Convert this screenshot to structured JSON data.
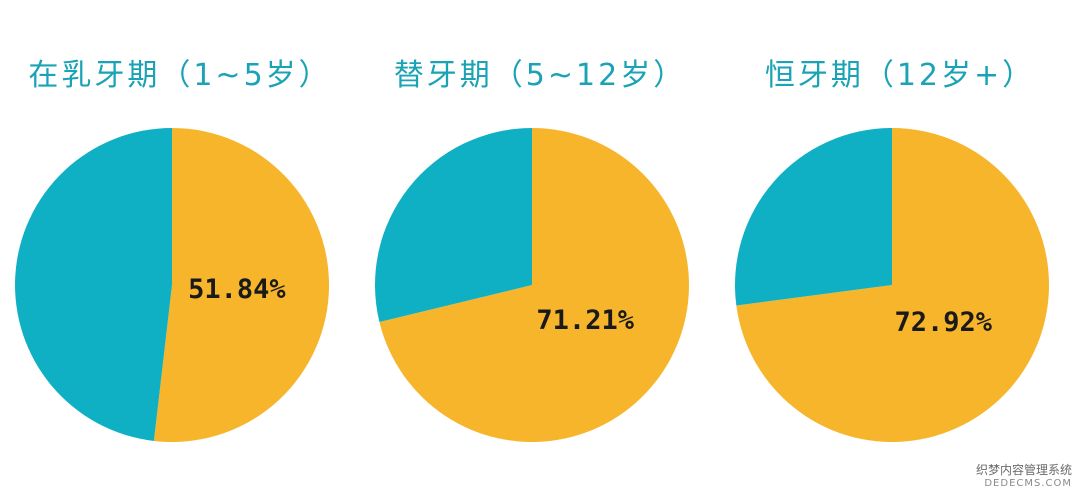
{
  "chart_data": [
    {
      "type": "pie",
      "title": "在乳牙期（1~5岁）",
      "slices": [
        {
          "value": 51.84,
          "label": "51.84%",
          "color": "#f6b52b"
        },
        {
          "value": 48.16,
          "label": "",
          "color": "#0fb0c4"
        }
      ]
    },
    {
      "type": "pie",
      "title": "替牙期（5~12岁）",
      "slices": [
        {
          "value": 71.21,
          "label": "71.21%",
          "color": "#f6b52b"
        },
        {
          "value": 28.79,
          "label": "",
          "color": "#0fb0c4"
        }
      ]
    },
    {
      "type": "pie",
      "title": "恒牙期（12岁+）",
      "slices": [
        {
          "value": 72.92,
          "label": "72.92%",
          "color": "#f6b52b"
        },
        {
          "value": 27.08,
          "label": "",
          "color": "#0fb0c4"
        }
      ]
    }
  ],
  "watermark": {
    "line1": "织梦内容管理系统",
    "line2": "DEDECMS.COM"
  }
}
